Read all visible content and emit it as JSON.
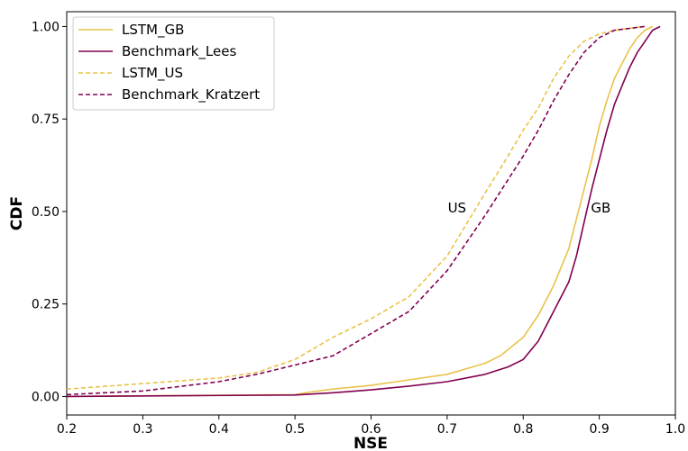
{
  "chart_data": {
    "type": "line",
    "title": "",
    "xlabel": "NSE",
    "ylabel": "CDF",
    "xlim": [
      0.2,
      1.0
    ],
    "ylim": [
      -0.05,
      1.04
    ],
    "xticks": [
      "0.2",
      "0.3",
      "0.4",
      "0.5",
      "0.6",
      "0.7",
      "0.8",
      "0.9",
      "1.0"
    ],
    "yticks": [
      "0.00",
      "0.25",
      "0.50",
      "0.75",
      "1.00"
    ],
    "grid": false,
    "legend_position": "top-left",
    "annotations": [
      {
        "text": "US",
        "x": 0.713,
        "y": 0.51
      },
      {
        "text": "GB",
        "x": 0.902,
        "y": 0.51
      }
    ],
    "series": [
      {
        "name": "LSTM_GB",
        "color": "#e8c34a",
        "style": "solid",
        "x": [
          0.2,
          0.5,
          0.52,
          0.55,
          0.6,
          0.65,
          0.7,
          0.75,
          0.77,
          0.8,
          0.82,
          0.84,
          0.86,
          0.87,
          0.88,
          0.89,
          0.9,
          0.91,
          0.92,
          0.93,
          0.94,
          0.95,
          0.96,
          0.97
        ],
        "y": [
          0.0,
          0.005,
          0.012,
          0.02,
          0.03,
          0.045,
          0.06,
          0.09,
          0.11,
          0.16,
          0.22,
          0.3,
          0.4,
          0.48,
          0.56,
          0.64,
          0.73,
          0.8,
          0.86,
          0.9,
          0.94,
          0.97,
          0.99,
          1.0
        ]
      },
      {
        "name": "Benchmark_Lees",
        "color": "#800050",
        "style": "solid",
        "x": [
          0.2,
          0.5,
          0.55,
          0.6,
          0.65,
          0.7,
          0.75,
          0.78,
          0.8,
          0.82,
          0.84,
          0.86,
          0.87,
          0.88,
          0.89,
          0.9,
          0.91,
          0.92,
          0.93,
          0.94,
          0.95,
          0.96,
          0.97,
          0.98
        ],
        "y": [
          0.0,
          0.004,
          0.01,
          0.018,
          0.028,
          0.04,
          0.06,
          0.08,
          0.1,
          0.15,
          0.23,
          0.31,
          0.38,
          0.47,
          0.56,
          0.64,
          0.72,
          0.79,
          0.84,
          0.89,
          0.93,
          0.96,
          0.99,
          1.0
        ]
      },
      {
        "name": "LSTM_US",
        "color": "#e8c34a",
        "style": "dashed",
        "x": [
          0.2,
          0.3,
          0.4,
          0.45,
          0.5,
          0.55,
          0.6,
          0.65,
          0.7,
          0.75,
          0.78,
          0.8,
          0.82,
          0.84,
          0.86,
          0.88,
          0.9,
          0.92,
          0.94,
          0.96
        ],
        "y": [
          0.02,
          0.035,
          0.05,
          0.065,
          0.1,
          0.16,
          0.21,
          0.27,
          0.38,
          0.55,
          0.65,
          0.72,
          0.78,
          0.86,
          0.92,
          0.96,
          0.98,
          0.99,
          0.995,
          1.0
        ]
      },
      {
        "name": "Benchmark_Kratzert",
        "color": "#800050",
        "style": "dashed",
        "x": [
          0.2,
          0.3,
          0.4,
          0.45,
          0.5,
          0.55,
          0.6,
          0.65,
          0.7,
          0.75,
          0.8,
          0.82,
          0.84,
          0.86,
          0.88,
          0.9,
          0.92,
          0.94,
          0.96
        ],
        "y": [
          0.005,
          0.015,
          0.04,
          0.06,
          0.085,
          0.11,
          0.17,
          0.23,
          0.34,
          0.49,
          0.65,
          0.72,
          0.8,
          0.87,
          0.93,
          0.97,
          0.99,
          0.995,
          1.0
        ]
      }
    ]
  }
}
